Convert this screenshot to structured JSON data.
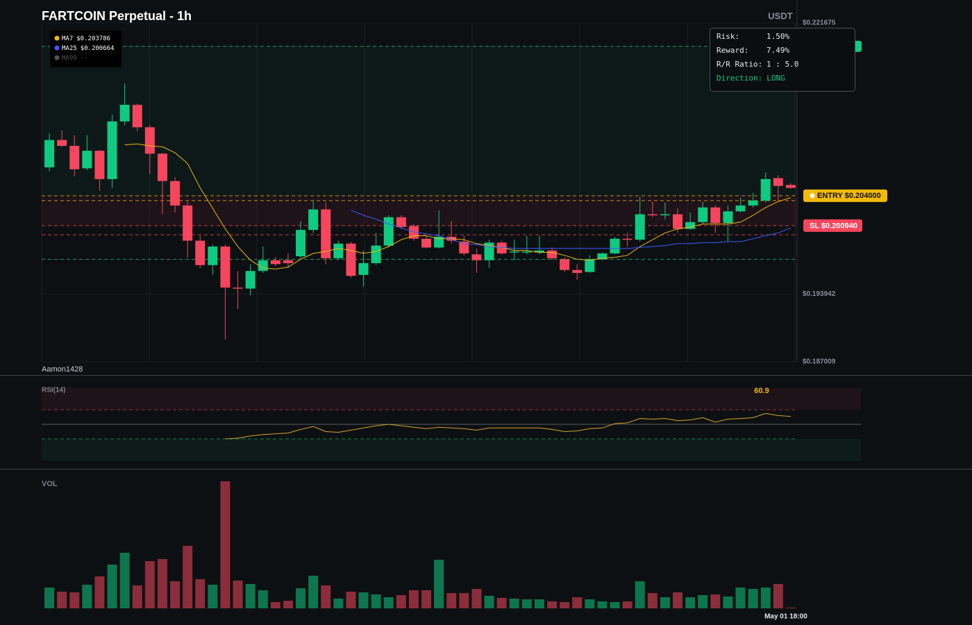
{
  "chart_data": [
    {
      "type": "candlestick",
      "title": "FARTCOIN Perpetual - 1h",
      "unit": "USDT",
      "watermark": "Aamon1428",
      "ylim": [
        0.187009,
        0.221675
      ],
      "yticks": [
        {
          "value": 0.221675,
          "label": "$0.221675"
        },
        {
          "value": 0.193942,
          "label": "$0.193942"
        },
        {
          "value": 0.187009,
          "label": "$0.187009"
        }
      ],
      "up_color": "#0ecb81",
      "down_color": "#f6465d",
      "ohlc": [
        [
          0.2069,
          0.2104,
          0.2065,
          0.2097
        ],
        [
          0.2097,
          0.2107,
          0.209,
          0.2091
        ],
        [
          0.2091,
          0.2102,
          0.206,
          0.2067
        ],
        [
          0.2068,
          0.2102,
          0.2066,
          0.2086
        ],
        [
          0.2086,
          0.2087,
          0.2045,
          0.2057
        ],
        [
          0.2057,
          0.2123,
          0.2048,
          0.2116
        ],
        [
          0.2116,
          0.2155,
          0.2112,
          0.2133
        ],
        [
          0.2133,
          0.2134,
          0.2106,
          0.211
        ],
        [
          0.211,
          0.2112,
          0.2062,
          0.2083
        ],
        [
          0.2083,
          0.2084,
          0.2021,
          0.2055
        ],
        [
          0.2055,
          0.2059,
          0.2023,
          0.203
        ],
        [
          0.203,
          0.2034,
          0.1977,
          0.1994
        ],
        [
          0.1994,
          0.1999,
          0.1966,
          0.1969
        ],
        [
          0.1969,
          0.199,
          0.1959,
          0.1988
        ],
        [
          0.1988,
          0.199,
          0.1893,
          0.1946
        ],
        [
          0.1946,
          0.1963,
          0.1924,
          0.1945
        ],
        [
          0.1945,
          0.197,
          0.1938,
          0.1963
        ],
        [
          0.1963,
          0.1988,
          0.1961,
          0.1974
        ],
        [
          0.1974,
          0.1977,
          0.1968,
          0.197
        ],
        [
          0.1974,
          0.1981,
          0.1966,
          0.1971
        ],
        [
          0.1978,
          0.2014,
          0.1976,
          0.2005
        ],
        [
          0.2005,
          0.2035,
          0.2002,
          0.2026
        ],
        [
          0.2026,
          0.2033,
          0.197,
          0.1976
        ],
        [
          0.1976,
          0.1994,
          0.1974,
          0.1991
        ],
        [
          0.1991,
          0.1993,
          0.1956,
          0.1958
        ],
        [
          0.1959,
          0.1984,
          0.1947,
          0.1971
        ],
        [
          0.1971,
          0.2002,
          0.1969,
          0.1989
        ],
        [
          0.1989,
          0.202,
          0.1987,
          0.2018
        ],
        [
          0.2018,
          0.202,
          0.2006,
          0.2008
        ],
        [
          0.2009,
          0.2011,
          0.1994,
          0.1996
        ],
        [
          0.1996,
          0.1999,
          0.1986,
          0.1987
        ],
        [
          0.1987,
          0.2025,
          0.1986,
          0.1998
        ],
        [
          0.1998,
          0.2014,
          0.1991,
          0.1994
        ],
        [
          0.1993,
          0.1999,
          0.1979,
          0.1981
        ],
        [
          0.198,
          0.1986,
          0.1961,
          0.1974
        ],
        [
          0.1974,
          0.1995,
          0.1966,
          0.1992
        ],
        [
          0.1992,
          0.1994,
          0.198,
          0.1981
        ],
        [
          0.1982,
          0.1995,
          0.1974,
          0.1983
        ],
        [
          0.1982,
          0.1999,
          0.198,
          0.1983
        ],
        [
          0.1982,
          0.1999,
          0.198,
          0.1984
        ],
        [
          0.1984,
          0.1987,
          0.1974,
          0.1976
        ],
        [
          0.1975,
          0.1977,
          0.1962,
          0.1964
        ],
        [
          0.1964,
          0.197,
          0.1954,
          0.1961
        ],
        [
          0.1962,
          0.1979,
          0.1961,
          0.1975
        ],
        [
          0.1975,
          0.1982,
          0.1974,
          0.1981
        ],
        [
          0.1981,
          0.1998,
          0.198,
          0.1996
        ],
        [
          0.1996,
          0.2002,
          0.1988,
          0.1995
        ],
        [
          0.1995,
          0.2039,
          0.1993,
          0.2021
        ],
        [
          0.2021,
          0.2034,
          0.2018,
          0.202
        ],
        [
          0.202,
          0.2033,
          0.2016,
          0.2021
        ],
        [
          0.2021,
          0.2027,
          0.2002,
          0.2006
        ],
        [
          0.2006,
          0.2023,
          0.2005,
          0.2013
        ],
        [
          0.2013,
          0.2034,
          0.2011,
          0.2028
        ],
        [
          0.2028,
          0.203,
          0.2002,
          0.2012
        ],
        [
          0.2012,
          0.203,
          0.1993,
          0.2024
        ],
        [
          0.2024,
          0.2038,
          0.2023,
          0.203
        ],
        [
          0.203,
          0.2043,
          0.2028,
          0.2035
        ],
        [
          0.2035,
          0.2064,
          0.2033,
          0.2057
        ],
        [
          0.2058,
          0.2061,
          0.2034,
          0.205
        ],
        [
          0.2051,
          0.2053,
          0.2047,
          0.2048
        ]
      ],
      "series": [
        {
          "name": "MA7",
          "label": "$0.203786",
          "color": "#f0b90b",
          "values": [
            null,
            null,
            null,
            null,
            null,
            null,
            0.2092,
            0.2093,
            0.2091,
            0.209,
            0.2084,
            0.2073,
            0.2048,
            0.2027,
            0.2006,
            0.1988,
            0.1974,
            0.1966,
            0.1965,
            0.1967,
            0.1975,
            0.1981,
            0.1983,
            0.1986,
            0.1984,
            0.1981,
            0.1983,
            0.1988,
            0.1995,
            0.1999,
            0.1999,
            0.1996,
            0.1996,
            0.1995,
            0.1991,
            0.1989,
            0.1987,
            0.1984,
            0.1984,
            0.1982,
            0.1982,
            0.1979,
            0.1975,
            0.1974,
            0.1976,
            0.1977,
            0.1979,
            0.1988,
            0.1995,
            0.2002,
            0.2006,
            0.2008,
            0.2011,
            0.2011,
            0.2011,
            0.2013,
            0.202,
            0.2028,
            0.2034,
            0.2038
          ]
        },
        {
          "name": "MA25",
          "label": "$0.200664",
          "color": "#3d5afe",
          "values": [
            null,
            null,
            null,
            null,
            null,
            null,
            null,
            null,
            null,
            null,
            null,
            null,
            null,
            null,
            null,
            null,
            null,
            null,
            null,
            null,
            null,
            null,
            null,
            null,
            0.2025,
            0.202,
            0.2016,
            0.2011,
            0.2007,
            0.2003,
            0.2001,
            0.1999,
            0.1995,
            0.1991,
            0.199,
            0.1988,
            0.1987,
            0.1986,
            0.1986,
            0.1986,
            0.1986,
            0.1986,
            0.1986,
            0.1986,
            0.1986,
            0.1986,
            0.1986,
            0.1987,
            0.1988,
            0.1989,
            0.1991,
            0.1991,
            0.1992,
            0.1992,
            0.1993,
            0.1993,
            0.1996,
            0.1999,
            0.2002,
            0.2007
          ]
        }
      ],
      "inactive": [
        {
          "name": "MA99",
          "label": "--",
          "color": "#555555"
        }
      ],
      "entry": {
        "value": 0.204,
        "label": "ENTRY $0.204000",
        "color": "#f0b90b"
      },
      "stop_loss": {
        "value": 0.20094,
        "label": "SL $0.200940",
        "color": "#f6465d"
      },
      "take_profit": {
        "value": 0.21928,
        "color": "#0ecb81"
      },
      "levels": [
        {
          "value": 0.2035,
          "color": "#f0b90b"
        },
        {
          "value": 0.2,
          "color": "#f6465d"
        },
        {
          "value": 0.1975,
          "color": "#0ecb81"
        }
      ],
      "info": [
        {
          "label": "Risk:",
          "value": "1.50%"
        },
        {
          "label": "Reward:",
          "value": "7.49%"
        },
        {
          "label": "R/R Ratio:",
          "value": "1 : 5.0"
        },
        {
          "label": "Direction:",
          "value": "LONG",
          "color": "#0ecb81"
        }
      ]
    },
    {
      "type": "line",
      "title": "RSI(14)",
      "ylim": [
        0,
        100
      ],
      "levels": [
        70,
        50,
        30
      ],
      "color": "#d4a72c",
      "values": [
        null,
        null,
        null,
        null,
        null,
        null,
        null,
        null,
        null,
        null,
        null,
        null,
        null,
        null,
        30,
        31,
        34,
        36,
        37,
        38,
        43,
        47,
        40,
        39,
        42,
        45,
        48,
        50,
        48,
        46,
        44,
        46,
        45,
        44,
        42,
        45,
        45,
        45,
        45,
        45,
        43,
        40,
        41,
        44,
        45,
        51,
        52,
        58,
        57,
        58,
        55,
        56,
        59,
        53,
        57,
        58,
        59,
        65,
        62,
        60.9
      ]
    },
    {
      "type": "bar",
      "title": "VOL",
      "ylim": [
        0,
        190
      ],
      "values": [
        30,
        24,
        23,
        34,
        46,
        63,
        80,
        33,
        68,
        71,
        39,
        90,
        42,
        34,
        183,
        40,
        35,
        26,
        9,
        11,
        29,
        47,
        33,
        14,
        24,
        23,
        20,
        16,
        19,
        26,
        26,
        70,
        22,
        22,
        28,
        18,
        15,
        14,
        13,
        13,
        10,
        9,
        16,
        13,
        10,
        9,
        10,
        39,
        22,
        16,
        23,
        16,
        19,
        20,
        17,
        30,
        28,
        30,
        35,
        1
      ],
      "categories": [
        null,
        null,
        null,
        null,
        null,
        null,
        null,
        null,
        null,
        null,
        null,
        null,
        null,
        null,
        null,
        null,
        null,
        null,
        null,
        null,
        null,
        null,
        null,
        null,
        null,
        null,
        null,
        null,
        null,
        null,
        null,
        null,
        null,
        null,
        null,
        null,
        null,
        null,
        null,
        null,
        null,
        null,
        null,
        null,
        null,
        null,
        null,
        null,
        null,
        null,
        null,
        null,
        null,
        null,
        null,
        null,
        null,
        null,
        null,
        "May 01 18:00"
      ]
    }
  ]
}
